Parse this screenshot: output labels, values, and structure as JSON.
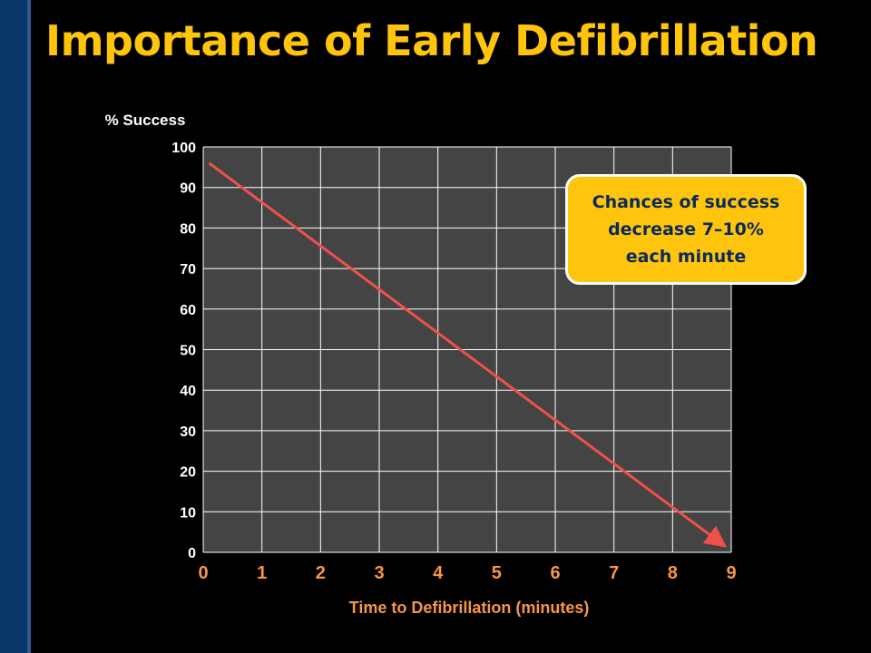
{
  "slide": {
    "title": "Importance of Early Defibrillation"
  },
  "callout": {
    "text": "Chances of success\ndecrease 7–10%\neach minute"
  },
  "chart_data": {
    "type": "line",
    "title": "",
    "xlabel": "Time to Defibrillation (minutes)",
    "ylabel": "% Success",
    "x_ticks": [
      0,
      1,
      2,
      3,
      4,
      5,
      6,
      7,
      8,
      9
    ],
    "y_ticks": [
      0,
      10,
      20,
      30,
      40,
      50,
      60,
      70,
      80,
      90,
      100
    ],
    "xlim": [
      0,
      9
    ],
    "ylim": [
      0,
      100
    ],
    "grid": true,
    "series": [
      {
        "x": [
          0.1,
          8.85
        ],
        "y": [
          96,
          2
        ],
        "color": "#f0504a",
        "arrow_end": true
      }
    ],
    "colors": {
      "plot_background": "#444444",
      "grid": "#ffffff",
      "x_tick_labels": "#f79646",
      "x_axis_label": "#f79646",
      "y_tick_labels": "#ffffff",
      "y_axis_label": "#ffffff"
    }
  }
}
